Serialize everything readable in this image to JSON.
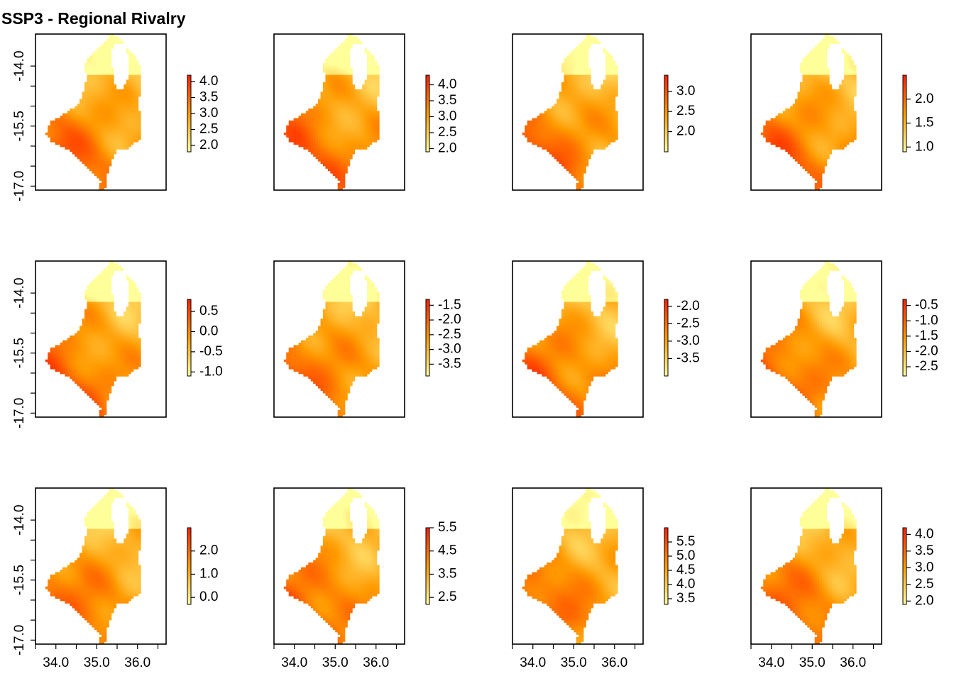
{
  "figure": {
    "title": "SSP3 - Regional Rivalry"
  },
  "map_extent": {
    "x": [
      33.5,
      36.7
    ],
    "y": [
      -17.1,
      -13.2
    ]
  },
  "color_ramp": {
    "low": "#ffff9a",
    "mid": "#ff9a00",
    "high": "#ff2000"
  },
  "axis_ticks": {
    "y_labels": [
      "-14.0",
      "-15.5",
      "-17.0"
    ],
    "y_values": [
      -14.0,
      -15.5,
      -17.0
    ],
    "y_minor": [
      -14.0,
      -14.5,
      -15.0,
      -15.5,
      -16.0,
      -16.5,
      -17.0
    ],
    "x_labels": [
      "34.0",
      "35.0",
      "36.0"
    ],
    "x_values": [
      34.0,
      35.0,
      36.0
    ],
    "x_minor": [
      33.5,
      34.0,
      34.5,
      35.0,
      35.5,
      36.0,
      36.5
    ]
  },
  "chart_data": [
    {
      "type": "heatmap",
      "panel": 1,
      "legend_ticks": [
        "4.0",
        "3.5",
        "3.0",
        "2.5",
        "2.0"
      ],
      "legend_values": [
        4.0,
        3.5,
        3.0,
        2.5,
        2.0
      ],
      "range": [
        1.8,
        4.2
      ]
    },
    {
      "type": "heatmap",
      "panel": 2,
      "legend_ticks": [
        "4.0",
        "3.5",
        "3.0",
        "2.5",
        "2.0"
      ],
      "legend_values": [
        4.0,
        3.5,
        3.0,
        2.5,
        2.0
      ],
      "range": [
        1.9,
        4.3
      ]
    },
    {
      "type": "heatmap",
      "panel": 3,
      "legend_ticks": [
        "3.0",
        "2.5",
        "2.0"
      ],
      "legend_values": [
        3.0,
        2.5,
        2.0
      ],
      "range": [
        1.5,
        3.4
      ]
    },
    {
      "type": "heatmap",
      "panel": 4,
      "legend_ticks": [
        "2.0",
        "1.5",
        "1.0"
      ],
      "legend_values": [
        2.0,
        1.5,
        1.0
      ],
      "range": [
        0.9,
        2.5
      ]
    },
    {
      "type": "heatmap",
      "panel": 5,
      "legend_ticks": [
        "0.5",
        "0.0",
        "-0.5",
        "-1.0"
      ],
      "legend_values": [
        0.5,
        0.0,
        -0.5,
        -1.0
      ],
      "range": [
        -1.1,
        0.8
      ]
    },
    {
      "type": "heatmap",
      "panel": 6,
      "legend_ticks": [
        "-1.5",
        "-2.0",
        "-2.5",
        "-3.0",
        "-3.5"
      ],
      "legend_values": [
        -1.5,
        -2.0,
        -2.5,
        -3.0,
        -3.5
      ],
      "range": [
        -3.9,
        -1.3
      ]
    },
    {
      "type": "heatmap",
      "panel": 7,
      "legend_ticks": [
        "-2.0",
        "-2.5",
        "-3.0",
        "-3.5"
      ],
      "legend_values": [
        -2.0,
        -2.5,
        -3.0,
        -3.5
      ],
      "range": [
        -4.0,
        -1.8
      ]
    },
    {
      "type": "heatmap",
      "panel": 8,
      "legend_ticks": [
        "-0.5",
        "-1.0",
        "-1.5",
        "-2.0",
        "-2.5"
      ],
      "legend_values": [
        -0.5,
        -1.0,
        -1.5,
        -2.0,
        -2.5
      ],
      "range": [
        -2.8,
        -0.3
      ]
    },
    {
      "type": "heatmap",
      "panel": 9,
      "legend_ticks": [
        "2.0",
        "1.0",
        "0.0"
      ],
      "legend_values": [
        2.0,
        1.0,
        0.0
      ],
      "range": [
        -0.3,
        3.0
      ]
    },
    {
      "type": "heatmap",
      "panel": 10,
      "legend_ticks": [
        "5.5",
        "4.5",
        "3.5",
        "2.5"
      ],
      "legend_values": [
        5.5,
        4.5,
        3.5,
        2.5
      ],
      "range": [
        2.2,
        5.5
      ]
    },
    {
      "type": "heatmap",
      "panel": 11,
      "legend_ticks": [
        "5.5",
        "5.0",
        "4.5",
        "4.0",
        "3.5"
      ],
      "legend_values": [
        5.5,
        5.0,
        4.5,
        4.0,
        3.5
      ],
      "range": [
        3.3,
        6.0
      ]
    },
    {
      "type": "heatmap",
      "panel": 12,
      "legend_ticks": [
        "4.0",
        "3.5",
        "3.0",
        "2.5",
        "2.0"
      ],
      "legend_values": [
        4.0,
        3.5,
        3.0,
        2.5,
        2.0
      ],
      "range": [
        1.9,
        4.2
      ]
    }
  ]
}
